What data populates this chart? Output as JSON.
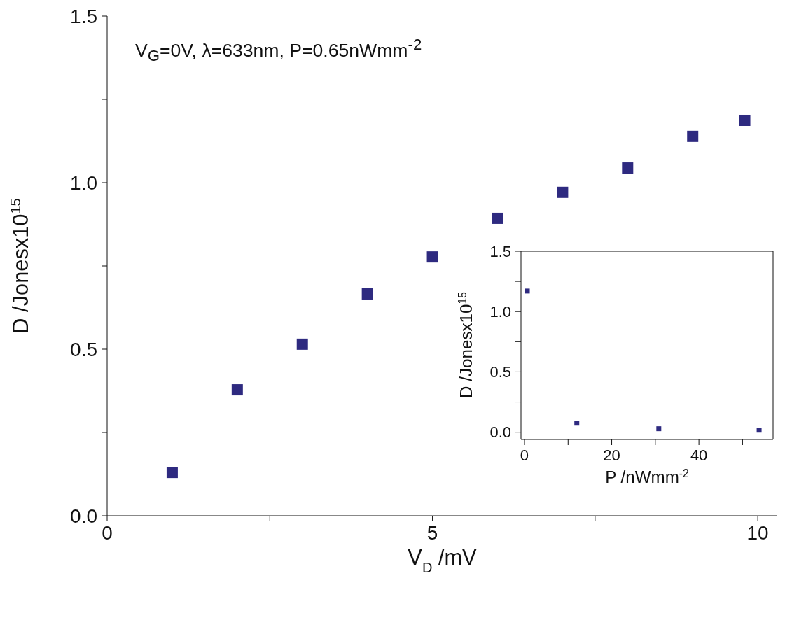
{
  "chart_data": [
    {
      "type": "scatter",
      "xlabel": "V$_{D}$ /mV",
      "ylabel": "D /Jonesx10$^{15}$",
      "annotations": [
        "V$_{G}$=0V, λ=633nm, P=0.65nWmm$^{-2}$"
      ],
      "series": [
        {
          "color": "#2e2a80",
          "x": [
            1,
            2,
            3,
            4,
            5,
            6,
            7,
            8,
            9,
            9.8
          ],
          "values": [
            0.13,
            0.378,
            0.515,
            0.666,
            0.777,
            0.893,
            0.971,
            1.044,
            1.139,
            1.187
          ]
        }
      ],
      "xlim": [
        0,
        10.3
      ],
      "xticks": [
        0,
        {
          "value": 2.5,
          "label": null
        },
        5,
        {
          "value": 7.5,
          "label": null
        },
        10
      ],
      "ylim": [
        0,
        1.5
      ],
      "yticks": [
        {
          "value": 0,
          "label": "0.0"
        },
        {
          "value": 0.25,
          "label": null
        },
        {
          "value": 0.5,
          "label": "0.5"
        },
        {
          "value": 0.75,
          "label": null
        },
        {
          "value": 1,
          "label": "1.0"
        },
        {
          "value": 1.25,
          "label": null
        },
        {
          "value": 1.5,
          "label": "1.5"
        }
      ],
      "marker": "square",
      "grid": false,
      "legend": false
    },
    {
      "type": "scatter",
      "xlabel": "P /nWmm$^{-2}$",
      "ylabel": "D /Jonesx10$^{15}$",
      "series": [
        {
          "color": "#2e2a80",
          "x": [
            0.65,
            12,
            30.8,
            53.8
          ],
          "values": [
            1.17,
            0.075,
            0.029,
            0.017
          ]
        }
      ],
      "xlim": [
        -0.8,
        57
      ],
      "xticks": [
        0,
        {
          "value": 10,
          "label": null
        },
        20,
        {
          "value": 30,
          "label": null
        },
        40,
        {
          "value": 50,
          "label": null
        }
      ],
      "ylim": [
        -0.06,
        1.5
      ],
      "yticks": [
        {
          "value": 0,
          "label": "0.0"
        },
        {
          "value": 0.25,
          "label": null
        },
        {
          "value": 0.5,
          "label": "0.5"
        },
        {
          "value": 0.75,
          "label": null
        },
        {
          "value": 1,
          "label": "1.0"
        },
        {
          "value": 1.25,
          "label": null
        },
        {
          "value": 1.5,
          "label": "1.5"
        }
      ],
      "marker": "square",
      "grid": false,
      "legend": false
    }
  ]
}
